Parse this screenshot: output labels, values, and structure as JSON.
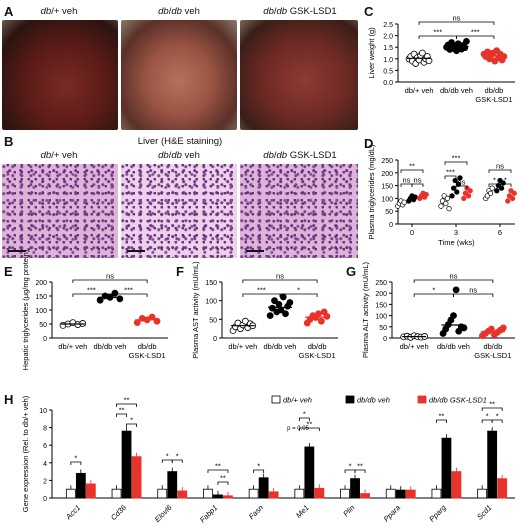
{
  "panel_letters": {
    "A": "A",
    "B": "B",
    "C": "C",
    "D": "D",
    "E": "E",
    "F": "F",
    "G": "G",
    "H": "H"
  },
  "photo_labels": {
    "a1_i": "db",
    "a1_r": "/+ veh",
    "a2_i": "db",
    "a2_m": "/",
    "a2_i2": "db",
    "a2_r": " veh",
    "a3_i": "db",
    "a3_m": "/",
    "a3_i2": "db",
    "a3_r": " GSK-LSD1"
  },
  "he_title": "Liver (H&E staining)",
  "groups": {
    "g1": "db/+ veh",
    "g2": "db/db veh",
    "g3a": "db/db",
    "g3b": "GSK-LSD1"
  },
  "panelC": {
    "ylabel": "Liver weight (g)",
    "yticks": [
      "0.0",
      "0.5",
      "1.0",
      "1.5",
      "2.0",
      "2.5"
    ],
    "sig": [
      "***",
      "ns",
      "***"
    ]
  },
  "panelD": {
    "ylabel": "Plasma triglycerides (mg/dL)",
    "xlabel": "Time (wks)",
    "yticks": [
      "0",
      "50",
      "100",
      "150",
      "200",
      "250"
    ],
    "xticks": [
      "0",
      "3",
      "6"
    ],
    "sig": [
      "**",
      "ns",
      "ns",
      "***",
      "***",
      "ns",
      "ns",
      "*",
      "*"
    ]
  },
  "panelE": {
    "ylabel": "Hepatic triglycerides (μg/mg protein)",
    "yticks": [
      "0",
      "50",
      "100",
      "150",
      "200"
    ],
    "sig": [
      "***",
      "ns",
      "***"
    ]
  },
  "panelF": {
    "ylabel": "Plasma AST activity (mU/mL)",
    "yticks": [
      "0",
      "50",
      "100",
      "150"
    ],
    "sig": [
      "***",
      "ns",
      "*"
    ]
  },
  "panelG": {
    "ylabel": "Plasma ALT activity (mU/mL)",
    "yticks": [
      "0",
      "50",
      "100",
      "150",
      "200",
      "250"
    ],
    "sig": [
      "*",
      "ns",
      "ns"
    ]
  },
  "panelH": {
    "ylabel": "Gene expression (Rel. to db/+ veh)",
    "yticks": [
      "0",
      "2",
      "4",
      "6",
      "8",
      "10"
    ],
    "genes": [
      "Acc1",
      "Cd36",
      "Elovl6",
      "Fabp1",
      "Fasn",
      "Me1",
      "Plin",
      "Ppara",
      "Pparg",
      "Scd1"
    ],
    "legend": [
      "db/+ veh",
      "db/db veh",
      "db/db GSK-LSD1"
    ],
    "pnote": "p = 0.05",
    "sig": [
      "*",
      "**",
      "**",
      "*",
      "*",
      "*",
      "**",
      "**",
      "*",
      "**",
      "*",
      "*",
      "**",
      "**",
      "**",
      "*",
      "*"
    ]
  },
  "colors": {
    "veh_db": "#ffffff",
    "dbdb": "#000000",
    "gsk": "#e8332a"
  },
  "chart_data": [
    {
      "type": "scatter",
      "panel": "C",
      "ylabel": "Liver weight (g)",
      "ylim": [
        0,
        2.5
      ],
      "categories": [
        "db/+ veh",
        "db/db veh",
        "db/db GSK-LSD1"
      ],
      "series": [
        {
          "values": [
            [
              1.0,
              1.1,
              0.9,
              1.2,
              0.8,
              1.05,
              0.95,
              1.15,
              1.25,
              0.85,
              1.0,
              1.1,
              0.92
            ]
          ]
        },
        {
          "values": [
            [
              1.5,
              1.6,
              1.4,
              1.7,
              1.45,
              1.55,
              1.35,
              1.65,
              1.5,
              1.42,
              1.58,
              1.48,
              1.75
            ]
          ]
        },
        {
          "values": [
            [
              1.2,
              1.1,
              1.3,
              1.0,
              1.15,
              1.25,
              0.9,
              1.35,
              1.05,
              1.2,
              0.95,
              1.1
            ]
          ]
        }
      ],
      "means": [
        1.02,
        1.53,
        1.13
      ]
    },
    {
      "type": "scatter",
      "panel": "E",
      "ylabel": "Hepatic triglycerides (μg/mg protein)",
      "ylim": [
        0,
        200
      ],
      "categories": [
        "db/+ veh",
        "db/db veh",
        "db/db GSK-LSD1"
      ],
      "series": [
        {
          "values": [
            [
              45,
              50,
              55,
              48,
              52
            ]
          ]
        },
        {
          "values": [
            [
              135,
              150,
              145,
              160,
              140
            ]
          ]
        },
        {
          "values": [
            [
              55,
              70,
              65,
              75,
              60
            ]
          ]
        }
      ],
      "means": [
        50,
        145,
        65
      ]
    },
    {
      "type": "scatter",
      "panel": "F",
      "ylabel": "Plasma AST activity (mU/mL)",
      "ylim": [
        0,
        150
      ],
      "categories": [
        "db/+ veh",
        "db/db veh",
        "db/db GSK-LSD1"
      ],
      "series": [
        {
          "values": [
            [
              20,
              30,
              40,
              25,
              35,
              45,
              28,
              38,
              33
            ]
          ]
        },
        {
          "values": [
            [
              60,
              80,
              100,
              70,
              90,
              75,
              110,
              65,
              85,
              95
            ]
          ]
        },
        {
          "values": [
            [
              40,
              50,
              60,
              55,
              65,
              45,
              70,
              58
            ]
          ]
        }
      ],
      "means": [
        33,
        82,
        56
      ]
    },
    {
      "type": "scatter",
      "panel": "G",
      "ylabel": "Plasma ALT activity (mU/mL)",
      "ylim": [
        0,
        250
      ],
      "categories": [
        "db/+ veh",
        "db/db veh",
        "db/db GSK-LSD1"
      ],
      "series": [
        {
          "values": [
            [
              5,
              8,
              3,
              10,
              6,
              4,
              7
            ]
          ]
        },
        {
          "values": [
            [
              20,
              40,
              60,
              80,
              100,
              215,
              30,
              50,
              45
            ]
          ]
        },
        {
          "values": [
            [
              10,
              20,
              30,
              40,
              15,
              25,
              35,
              45
            ]
          ]
        }
      ],
      "means": [
        6,
        58,
        28
      ]
    },
    {
      "type": "scatter",
      "panel": "D",
      "ylabel": "Plasma triglycerides (mg/dL)",
      "xlabel": "Time (wks)",
      "ylim": [
        0,
        250
      ],
      "x": [
        0,
        3,
        6
      ],
      "series": [
        {
          "name": "db/+ veh",
          "values": [
            [
              70,
              80,
              90,
              75,
              85
            ],
            [
              70,
              90,
              110,
              80,
              100,
              60
            ],
            [
              100,
              110,
              130,
              120,
              140
            ]
          ]
        },
        {
          "name": "db/db veh",
          "values": [
            [
              90,
              100,
              110,
              95,
              105
            ],
            [
              110,
              140,
              170,
              125,
              155,
              180
            ],
            [
              130,
              150,
              170,
              140,
              160
            ]
          ]
        },
        {
          "name": "db/db GSK-LSD1",
          "values": [
            [
              100,
              110,
              120,
              105,
              115
            ],
            [
              100,
              120,
              140,
              110,
              130
            ],
            [
              90,
              110,
              130,
              100,
              120
            ]
          ]
        }
      ]
    },
    {
      "type": "bar",
      "panel": "H",
      "ylabel": "Gene expression (Rel. to db/+ veh)",
      "ylim": [
        0,
        10
      ],
      "categories": [
        "Acc1",
        "Cd36",
        "Elovl6",
        "Fabp1",
        "Fasn",
        "Me1",
        "Plin",
        "Ppara",
        "Pparg",
        "Scd1"
      ],
      "series": [
        {
          "name": "db/+ veh",
          "values": [
            1,
            1,
            1,
            1,
            1,
            1,
            1,
            1,
            1,
            1
          ]
        },
        {
          "name": "db/db veh",
          "values": [
            2.8,
            7.6,
            3.0,
            0.35,
            2.3,
            5.8,
            2.2,
            0.9,
            6.8,
            7.6
          ]
        },
        {
          "name": "db/db GSK-LSD1",
          "values": [
            1.6,
            4.7,
            0.8,
            0.25,
            0.7,
            1.1,
            0.5,
            0.9,
            3.0,
            2.2
          ]
        }
      ]
    }
  ]
}
